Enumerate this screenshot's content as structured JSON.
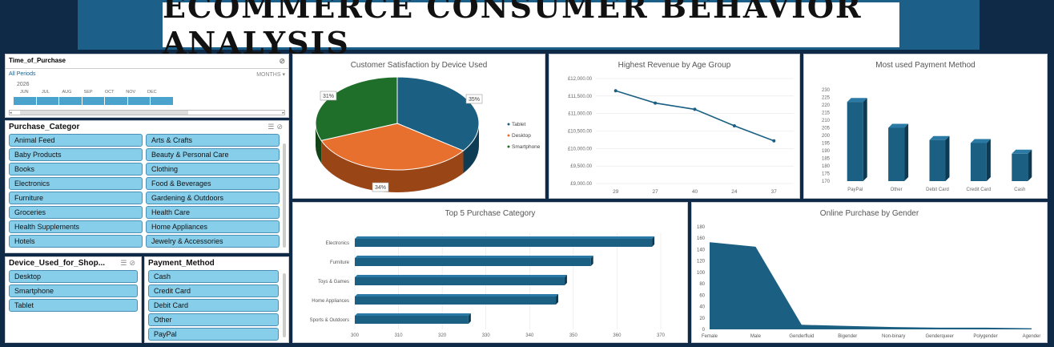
{
  "header": {
    "title": "ECOMMERCE CONSUMER BEHAVIOR ANALYSIS"
  },
  "timeline": {
    "title": "Time_of_Purchase",
    "all_periods": "All Periods",
    "period_mode": "MONTHS",
    "year": "2026",
    "months": [
      "JUN",
      "JUL",
      "AUG",
      "SEP",
      "OCT",
      "NOV",
      "DEC"
    ]
  },
  "purchase_category_slicer": {
    "title": "Purchase_Categor",
    "items": [
      "Animal Feed",
      "Arts & Crafts",
      "Baby Products",
      "Beauty & Personal Care",
      "Books",
      "Clothing",
      "Electronics",
      "Food & Beverages",
      "Furniture",
      "Gardening & Outdoors",
      "Groceries",
      "Health Care",
      "Health Supplements",
      "Home Appliances",
      "Hotels",
      "Jewelry & Accessories"
    ]
  },
  "device_slicer": {
    "title": "Device_Used_for_Shop...",
    "items": [
      "Desktop",
      "Smartphone",
      "Tablet"
    ]
  },
  "payment_slicer": {
    "title": "Payment_Method",
    "items": [
      "Cash",
      "Credit Card",
      "Debit Card",
      "Other",
      "PayPal"
    ]
  },
  "colors": {
    "bar": "#1b5f83",
    "pie_tablet": "#1b5f83",
    "pie_desktop": "#e8702e",
    "pie_smartphone": "#1f6e2a"
  },
  "chart_data": [
    {
      "type": "pie",
      "title": "Customer Satisfaction by Device Used",
      "categories": [
        "Tablet",
        "Desktop",
        "Smartphone"
      ],
      "values": [
        35,
        34,
        31
      ],
      "data_labels": [
        "35%",
        "34%",
        "31%"
      ]
    },
    {
      "type": "line",
      "title": "Highest Revenue by Age Group",
      "categories": [
        "29",
        "27",
        "40",
        "24",
        "37"
      ],
      "values": [
        11650,
        11300,
        11120,
        10650,
        10220
      ],
      "ylim": [
        9000,
        12000
      ],
      "y_ticks": [
        "£12,000.00",
        "£11,500.00",
        "£11,000.00",
        "£10,500.00",
        "£10,000.00",
        "£9,500.00",
        "£9,000.00"
      ]
    },
    {
      "type": "bar",
      "title": "Most used Payment Method",
      "categories": [
        "PayPal",
        "Other",
        "Debit Card",
        "Credit Card",
        "Cash"
      ],
      "values": [
        222,
        205,
        197,
        195,
        188
      ],
      "ylim": [
        170,
        230
      ],
      "y_ticks": [
        "230",
        "225",
        "220",
        "215",
        "210",
        "205",
        "200",
        "195",
        "190",
        "185",
        "180",
        "175",
        "170"
      ]
    },
    {
      "type": "bar",
      "orientation": "horizontal",
      "title": "Top 5 Purchase Category",
      "categories": [
        "Electronics",
        "Furniture",
        "Toys & Games",
        "Home Appliances",
        "Sports & Outdoors"
      ],
      "values": [
        368,
        354,
        348,
        346,
        326
      ],
      "xlim": [
        300,
        370
      ],
      "x_ticks": [
        "300",
        "310",
        "320",
        "330",
        "340",
        "350",
        "360",
        "370"
      ]
    },
    {
      "type": "area",
      "title": "Online Purchase by Gender",
      "categories": [
        "Female",
        "Male",
        "Genderfluid",
        "Bigender",
        "Non-binary",
        "Genderqueer",
        "Polygender",
        "Agender"
      ],
      "values": [
        153,
        145,
        8,
        6,
        4,
        3,
        3,
        2
      ],
      "ylim": [
        0,
        180
      ],
      "y_ticks": [
        "180",
        "160",
        "140",
        "120",
        "100",
        "80",
        "60",
        "40",
        "20",
        "0"
      ]
    }
  ]
}
